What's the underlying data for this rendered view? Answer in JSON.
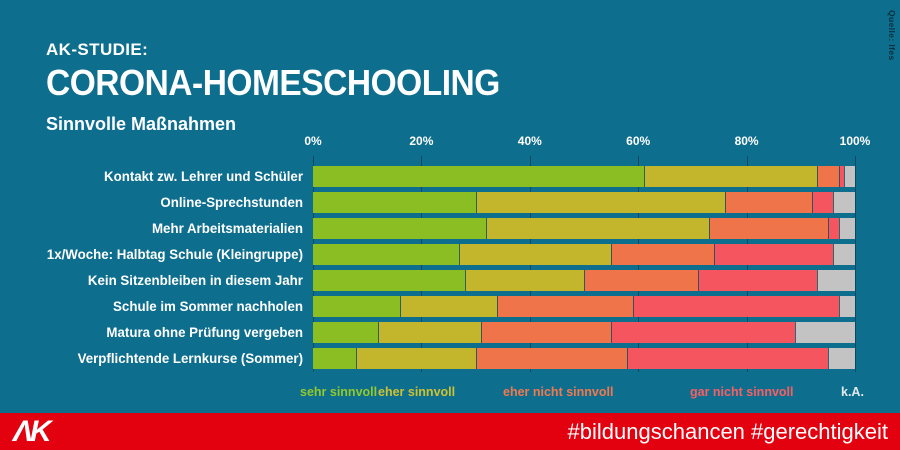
{
  "header": {
    "kicker": "AK-STUDIE:",
    "title": "CORONA-HOMESCHOOLING",
    "subtitle": "Sinnvolle Maßnahmen",
    "source_note": "Quelle: Ifes"
  },
  "footer": {
    "logo_name": "AK",
    "logo_glyph": "ΛK",
    "hashtags": "#bildungschancen #gerechtigkeit",
    "bar_color": "#e3000f"
  },
  "colors": {
    "background": "#0e6e8e",
    "text": "#ffffff",
    "gridline": "#05303f"
  },
  "chart_data": {
    "type": "bar",
    "stacked": true,
    "orientation": "horizontal",
    "unit": "percent",
    "xlim": [
      0,
      100
    ],
    "x_ticks": [
      "0%",
      "20%",
      "40%",
      "60%",
      "80%",
      "100%"
    ],
    "grid": true,
    "legend_position": "bottom",
    "categories": [
      "Kontakt zw. Lehrer und Schüler",
      "Online-Sprechstunden",
      "Mehr Arbeitsmaterialien",
      "1x/Woche: Halbtag Schule (Kleingruppe)",
      "Kein Sitzenbleiben in diesem Jahr",
      "Schule im Sommer nachholen",
      "Matura ohne Prüfung vergeben",
      "Verpflichtende Lernkurse (Sommer)"
    ],
    "series": [
      {
        "name": "sehr sinnvoll",
        "color": "#8abe23",
        "legend_text_color": "#93c92a",
        "values": [
          61,
          30,
          32,
          27,
          28,
          16,
          12,
          8
        ]
      },
      {
        "name": "eher sinnvoll",
        "color": "#c3b62c",
        "legend_text_color": "#cfc130",
        "values": [
          32,
          46,
          41,
          28,
          22,
          18,
          19,
          22
        ]
      },
      {
        "name": "eher nicht sinnvoll",
        "color": "#ef7449",
        "legend_text_color": "#f1794e",
        "values": [
          4,
          16,
          22,
          19,
          21,
          25,
          24,
          28
        ]
      },
      {
        "name": "gar nicht sinnvoll",
        "color": "#f4555e",
        "legend_text_color": "#f85f64",
        "values": [
          1,
          4,
          2,
          22,
          22,
          38,
          34,
          37
        ]
      },
      {
        "name": "k.A.",
        "color": "#c3c3c3",
        "legend_text_color": "#e3eaed",
        "values": [
          2,
          4,
          3,
          4,
          7,
          3,
          11,
          5
        ]
      }
    ]
  }
}
